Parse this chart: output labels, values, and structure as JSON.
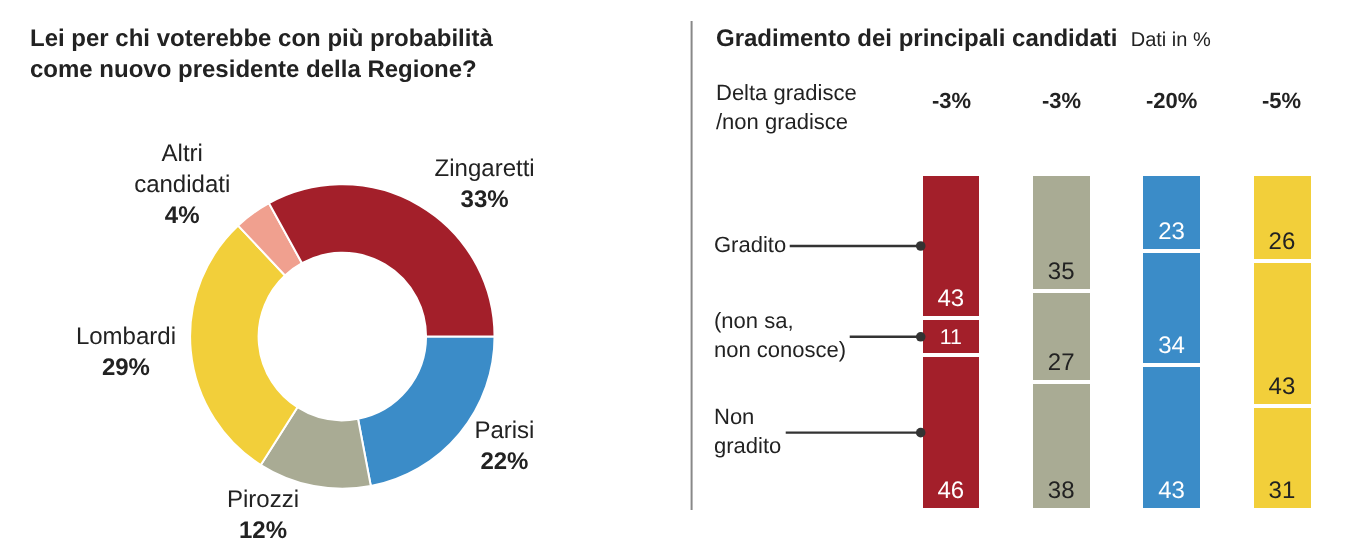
{
  "chart_data": [
    {
      "type": "donut",
      "title": "Lei per chi voterebbe con più probabilità\ncome nuovo presidente della Regione?",
      "categories": [
        "Parisi",
        "Pirozzi",
        "Lombardi",
        "Altri\ncandidati",
        "Zingaretti"
      ],
      "values": [
        22,
        12,
        29,
        4,
        33
      ],
      "value_labels": [
        "22%",
        "12%",
        "29%",
        "4%",
        "33%"
      ],
      "colors": [
        "#3b8cc8",
        "#a9ab94",
        "#f2cf3a",
        "#f0a08f",
        "#a31f2a"
      ],
      "legend": false
    },
    {
      "type": "bar",
      "stacked": true,
      "title": "Gradimento dei principali candidati",
      "subtitle": "Dati in %",
      "categories": [
        null,
        null,
        null,
        null
      ],
      "data_labels": true,
      "legend": false,
      "annotations": [
        "Delta gradisce\n/non gradisce",
        "-3%",
        "-3%",
        "-20%",
        "-5%"
      ],
      "series": [
        {
          "name": "Non\ngradito",
          "colors": [
            "#a31f2a",
            "#a9ab94",
            "#3b8cc8",
            "#f2cf3a"
          ],
          "values": [
            46,
            38,
            43,
            31
          ]
        },
        {
          "name": "(non sa,\nnon conosce)",
          "colors": [
            "#a31f2a",
            "#a9ab94",
            "#3b8cc8",
            "#f2cf3a"
          ],
          "values": [
            11,
            27,
            34,
            43
          ]
        },
        {
          "name": "Gradito",
          "colors": [
            "#a31f2a",
            "#a9ab94",
            "#3b8cc8",
            "#f2cf3a"
          ],
          "values": [
            43,
            35,
            23,
            26
          ]
        }
      ]
    }
  ]
}
